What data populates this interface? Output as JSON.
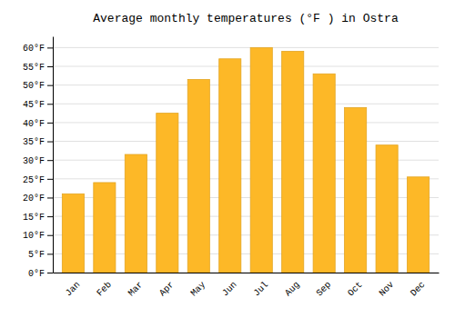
{
  "chart_data": {
    "type": "bar",
    "title": "Average monthly temperatures (°F ) in Ostra",
    "categories": [
      "Jan",
      "Feb",
      "Mar",
      "Apr",
      "May",
      "Jun",
      "Jul",
      "Aug",
      "Sep",
      "Oct",
      "Nov",
      "Dec"
    ],
    "values": [
      21,
      24,
      31.5,
      42.5,
      51.5,
      57,
      60,
      59,
      53,
      44,
      34,
      25.5
    ],
    "color": "#FDB827",
    "ylim": [
      0,
      63
    ],
    "yticks": [
      {
        "value": 0,
        "label": "0°F"
      },
      {
        "value": 5,
        "label": "5°F"
      },
      {
        "value": 10,
        "label": "10°F"
      },
      {
        "value": 15,
        "label": "15°F"
      },
      {
        "value": 20,
        "label": "20°F"
      },
      {
        "value": 25,
        "label": "25°F"
      },
      {
        "value": 30,
        "label": "30°F"
      },
      {
        "value": 35,
        "label": "35°F"
      },
      {
        "value": 40,
        "label": "40°F"
      },
      {
        "value": 45,
        "label": "45°F"
      },
      {
        "value": 50,
        "label": "50°F"
      },
      {
        "value": 55,
        "label": "55°F"
      },
      {
        "value": 60,
        "label": "60°F"
      }
    ],
    "grid": true
  }
}
